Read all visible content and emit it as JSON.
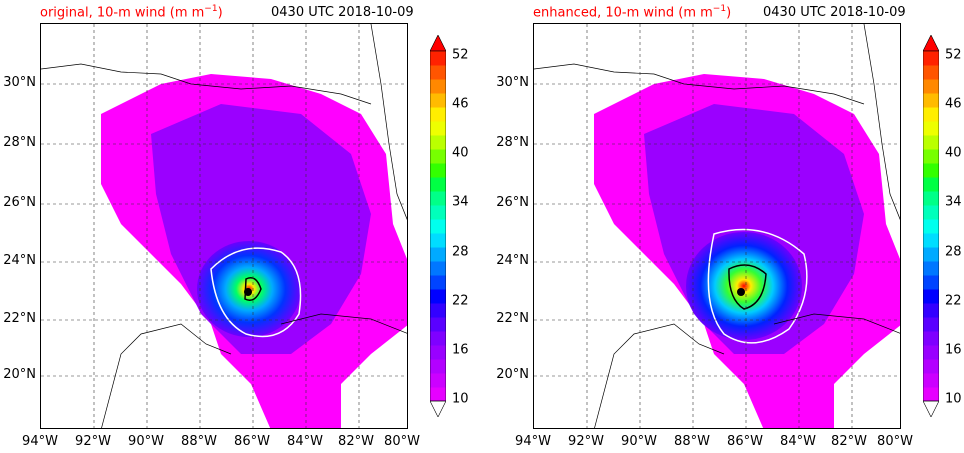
{
  "panels": [
    {
      "title": "original, 10-m wind (m m",
      "title_sup": "−1",
      "title_close": ")",
      "time": "0430 UTC 2018-10-09",
      "variant": "original"
    },
    {
      "title": "enhanced, 10-m wind (m m",
      "title_sup": "−1",
      "title_close": ")",
      "time": "0430 UTC 2018-10-09",
      "variant": "enhanced"
    }
  ],
  "lat_labels": [
    "30°N",
    "28°N",
    "26°N",
    "24°N",
    "22°N",
    "20°N"
  ],
  "lat_values": [
    30,
    28,
    26,
    24,
    22,
    20
  ],
  "lon_labels": [
    "94°W",
    "92°W",
    "90°W",
    "88°W",
    "86°W",
    "84°W",
    "82°W",
    "80°W"
  ],
  "lon_values": [
    -94,
    -92,
    -90,
    -88,
    -86,
    -84,
    -82,
    -80
  ],
  "colorbar": {
    "tick_labels": [
      "10",
      "16",
      "22",
      "28",
      "34",
      "40",
      "46",
      "52"
    ],
    "tick_values": [
      10,
      16,
      22,
      28,
      34,
      40,
      46,
      52
    ],
    "min": 10,
    "max": 52,
    "colors": [
      "#ff00ff",
      "#e600ff",
      "#cc00ff",
      "#b300ff",
      "#9900ff",
      "#7f00ff",
      "#5a00ff",
      "#3300ff",
      "#0000ff",
      "#0044ff",
      "#0077ff",
      "#00aaff",
      "#00ddff",
      "#00ffee",
      "#00ffbb",
      "#00ff88",
      "#00ff44",
      "#33ff00",
      "#77ff00",
      "#bbff00",
      "#eeff00",
      "#ffee00",
      "#ffbb00",
      "#ff8800",
      "#ff5500",
      "#ff2200",
      "#ff0000"
    ]
  },
  "map_extent": {
    "lon_min": -94,
    "lon_max": -80,
    "lat_min": 18,
    "lat_max": 32
  }
}
